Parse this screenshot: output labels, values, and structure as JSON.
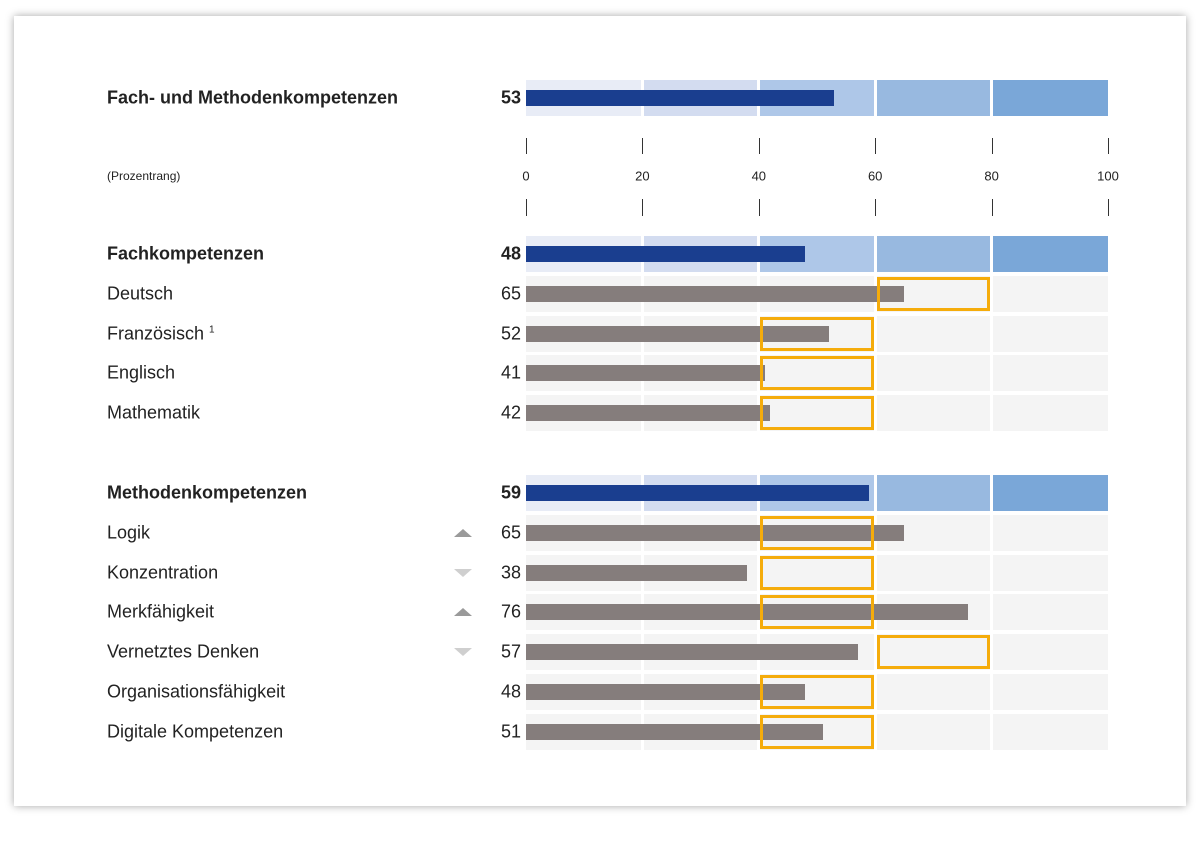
{
  "chart_data": {
    "type": "bar",
    "orientation": "horizontal",
    "unit_label": "(Prozentrang)",
    "xlim": [
      0,
      100
    ],
    "ticks": [
      0,
      20,
      40,
      60,
      80,
      100
    ],
    "colors": {
      "summary_bar": "#1a3e8f",
      "item_bar": "#857d7c",
      "expected_range": "#f5ac0b",
      "summary_bands": [
        "#e8ecf6",
        "#d3dcf0",
        "#aec7e8",
        "#98b9e0",
        "#7aa7d8"
      ],
      "item_band": "#f4f4f4"
    },
    "sections": [
      {
        "label": "Fach- und Methodenkompetenzen",
        "value": 53,
        "items": []
      },
      {
        "label": "Fachkompetenzen",
        "value": 48,
        "items": [
          {
            "label": "Deutsch",
            "value": 65,
            "range": [
              60,
              80
            ],
            "trend": null
          },
          {
            "label": "Französisch",
            "footnote": "1",
            "value": 52,
            "range": [
              40,
              60
            ],
            "trend": null
          },
          {
            "label": "Englisch",
            "value": 41,
            "range": [
              40,
              60
            ],
            "trend": null
          },
          {
            "label": "Mathematik",
            "value": 42,
            "range": [
              40,
              60
            ],
            "trend": null
          }
        ]
      },
      {
        "label": "Methodenkompetenzen",
        "value": 59,
        "items": [
          {
            "label": "Logik",
            "value": 65,
            "range": [
              40,
              60
            ],
            "trend": "up"
          },
          {
            "label": "Konzentration",
            "value": 38,
            "range": [
              40,
              60
            ],
            "trend": "down"
          },
          {
            "label": "Merkfähigkeit",
            "value": 76,
            "range": [
              40,
              60
            ],
            "trend": "up"
          },
          {
            "label": "Vernetztes Denken",
            "value": 57,
            "range": [
              60,
              80
            ],
            "trend": "down"
          },
          {
            "label": "Organisationsfähigkeit",
            "value": 48,
            "range": [
              40,
              60
            ],
            "trend": null
          },
          {
            "label": "Digitale Kompetenzen",
            "value": 51,
            "range": [
              40,
              60
            ],
            "trend": null
          }
        ]
      }
    ]
  }
}
